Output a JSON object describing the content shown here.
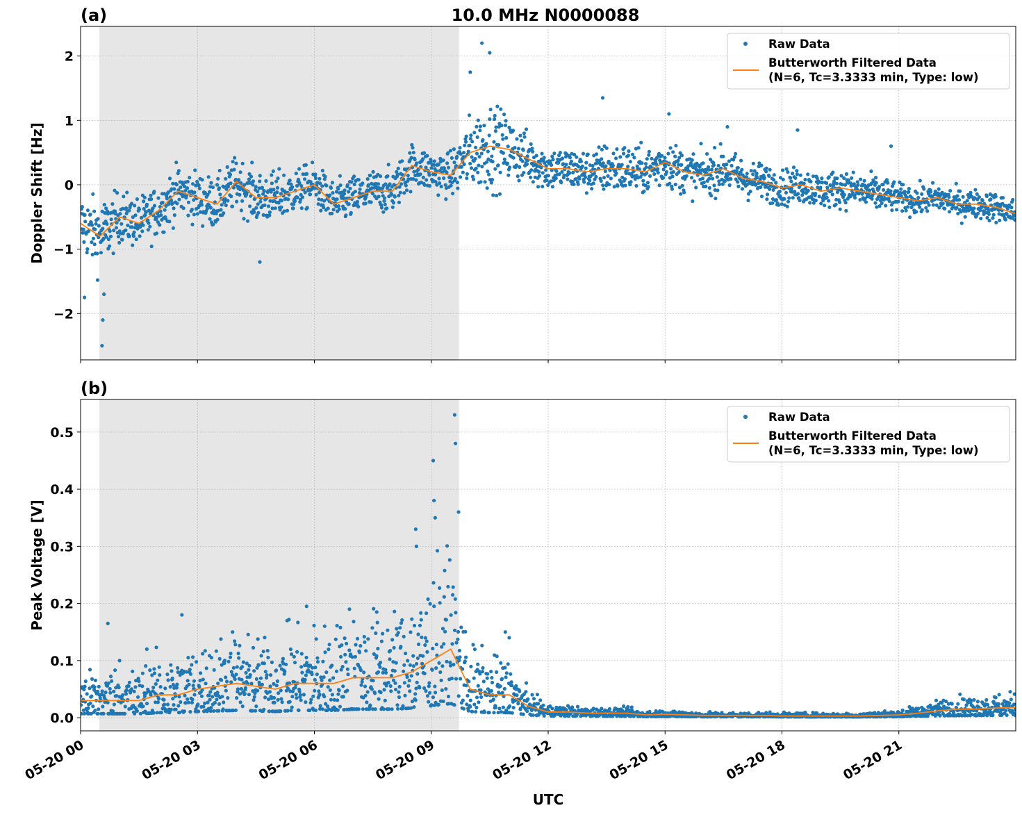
{
  "title": "10.0 MHz N0000088",
  "colors": {
    "raw": "#1f77b4",
    "filtered": "#ff7f0e",
    "shade": "#e6e6e6"
  },
  "chart_data": [
    {
      "panel_label": "(a)",
      "type": "scatter+line",
      "ylabel": "Doppler Shift [Hz]",
      "xlabel": "",
      "xlim": [
        "05-20 00:00",
        "05-21 00:00"
      ],
      "ylim": [
        -2.72,
        2.46
      ],
      "yticks": [
        -2,
        -1,
        0,
        1,
        2
      ],
      "ytick_labels": [
        "−2",
        "−1",
        "0",
        "1",
        "2"
      ],
      "grid": true,
      "shaded_interval_hours": [
        0.48,
        9.71
      ],
      "legend": {
        "position": "top-right",
        "entries": [
          "Raw Data",
          "Butterworth Filtered Data",
          "(N=6, Tc=3.3333 min, Type: low)"
        ]
      },
      "x_hours": [
        0,
        0.5,
        1,
        1.5,
        2,
        2.5,
        3,
        3.5,
        4,
        4.5,
        5,
        5.5,
        6,
        6.5,
        7,
        7.5,
        8,
        8.5,
        9,
        9.5,
        10,
        10.5,
        11,
        11.5,
        12,
        12.5,
        13,
        13.5,
        14,
        14.5,
        15,
        15.5,
        16,
        16.5,
        17,
        17.5,
        18,
        18.5,
        19,
        19.5,
        20,
        20.5,
        21,
        21.5,
        22,
        22.5,
        23,
        23.5,
        24
      ],
      "filtered": [
        -0.6,
        -0.8,
        -0.5,
        -0.6,
        -0.4,
        -0.1,
        -0.2,
        -0.3,
        0.05,
        -0.2,
        -0.2,
        -0.1,
        0.0,
        -0.3,
        -0.2,
        -0.1,
        -0.1,
        0.3,
        0.2,
        0.15,
        0.5,
        0.6,
        0.55,
        0.4,
        0.25,
        0.25,
        0.2,
        0.25,
        0.25,
        0.2,
        0.35,
        0.2,
        0.15,
        0.25,
        0.1,
        0.05,
        -0.05,
        0.0,
        -0.1,
        -0.05,
        -0.1,
        -0.15,
        -0.2,
        -0.25,
        -0.2,
        -0.3,
        -0.3,
        -0.35,
        -0.45
      ],
      "raw_spread": [
        0.4,
        0.5,
        0.35,
        0.35,
        0.35,
        0.35,
        0.35,
        0.35,
        0.35,
        0.35,
        0.35,
        0.3,
        0.3,
        0.3,
        0.3,
        0.3,
        0.3,
        0.3,
        0.3,
        0.3,
        0.5,
        0.6,
        0.45,
        0.35,
        0.3,
        0.3,
        0.3,
        0.35,
        0.35,
        0.3,
        0.35,
        0.3,
        0.3,
        0.3,
        0.28,
        0.25,
        0.25,
        0.25,
        0.25,
        0.25,
        0.25,
        0.25,
        0.2,
        0.2,
        0.2,
        0.2,
        0.2,
        0.2,
        0.2
      ],
      "raw_outliers": [
        [
          0.55,
          -2.5
        ],
        [
          0.57,
          -2.1
        ],
        [
          0.6,
          -1.7
        ],
        [
          0.1,
          -1.75
        ],
        [
          4.6,
          -1.2
        ],
        [
          10.3,
          2.2
        ],
        [
          10.5,
          2.05
        ],
        [
          10.0,
          1.75
        ],
        [
          13.4,
          1.35
        ],
        [
          15.1,
          1.1
        ],
        [
          16.6,
          0.9
        ],
        [
          18.4,
          0.85
        ],
        [
          20.8,
          0.6
        ]
      ]
    },
    {
      "panel_label": "(b)",
      "type": "scatter+line",
      "ylabel": "Peak Voltage [V]",
      "xlabel": "UTC",
      "xlim": [
        "05-20 00:00",
        "05-21 00:00"
      ],
      "ylim": [
        -0.023,
        0.557
      ],
      "yticks": [
        0.0,
        0.1,
        0.2,
        0.3,
        0.4,
        0.5
      ],
      "ytick_labels": [
        "0.0",
        "0.1",
        "0.2",
        "0.3",
        "0.4",
        "0.5"
      ],
      "xtick_hours": [
        0,
        3,
        6,
        9,
        12,
        15,
        18,
        21
      ],
      "xtick_labels": [
        "05-20 00",
        "05-20 03",
        "05-20 06",
        "05-20 09",
        "05-20 12",
        "05-20 15",
        "05-20 18",
        "05-20 21"
      ],
      "grid": true,
      "shaded_interval_hours": [
        0.48,
        9.71
      ],
      "legend": {
        "position": "top-right",
        "entries": [
          "Raw Data",
          "Butterworth Filtered Data",
          "(N=6, Tc=3.3333 min, Type: low)"
        ]
      },
      "x_hours": [
        0,
        0.5,
        1,
        1.5,
        2,
        2.5,
        3,
        3.5,
        4,
        4.5,
        5,
        5.5,
        6,
        6.5,
        7,
        7.5,
        8,
        8.5,
        9,
        9.5,
        10,
        10.5,
        11,
        11.5,
        12,
        12.5,
        13,
        13.5,
        14,
        14.5,
        15,
        15.5,
        16,
        16.5,
        17,
        17.5,
        18,
        18.5,
        19,
        19.5,
        20,
        20.5,
        21,
        21.5,
        22,
        22.5,
        23,
        23.5,
        24
      ],
      "filtered": [
        0.03,
        0.03,
        0.03,
        0.03,
        0.04,
        0.04,
        0.05,
        0.055,
        0.06,
        0.055,
        0.05,
        0.06,
        0.06,
        0.06,
        0.07,
        0.07,
        0.07,
        0.08,
        0.1,
        0.12,
        0.05,
        0.04,
        0.04,
        0.02,
        0.01,
        0.01,
        0.008,
        0.008,
        0.008,
        0.005,
        0.006,
        0.005,
        0.004,
        0.004,
        0.004,
        0.004,
        0.003,
        0.003,
        0.003,
        0.003,
        0.003,
        0.004,
        0.005,
        0.008,
        0.012,
        0.015,
        0.015,
        0.017,
        0.018
      ],
      "raw_spread": [
        0.025,
        0.03,
        0.03,
        0.03,
        0.035,
        0.04,
        0.04,
        0.045,
        0.045,
        0.045,
        0.045,
        0.05,
        0.055,
        0.055,
        0.06,
        0.06,
        0.065,
        0.07,
        0.08,
        0.09,
        0.04,
        0.035,
        0.035,
        0.012,
        0.006,
        0.006,
        0.005,
        0.005,
        0.005,
        0.004,
        0.004,
        0.004,
        0.003,
        0.003,
        0.003,
        0.003,
        0.003,
        0.003,
        0.003,
        0.003,
        0.003,
        0.004,
        0.005,
        0.007,
        0.01,
        0.012,
        0.012,
        0.013,
        0.013
      ],
      "raw_outliers": [
        [
          0.7,
          0.165
        ],
        [
          1.0,
          0.1
        ],
        [
          1.7,
          0.12
        ],
        [
          2.6,
          0.18
        ],
        [
          3.9,
          0.15
        ],
        [
          5.3,
          0.17
        ],
        [
          5.8,
          0.195
        ],
        [
          6.9,
          0.19
        ],
        [
          7.6,
          0.185
        ],
        [
          8.6,
          0.33
        ],
        [
          8.62,
          0.3
        ],
        [
          9.05,
          0.45
        ],
        [
          9.07,
          0.38
        ],
        [
          9.1,
          0.35
        ],
        [
          9.6,
          0.53
        ],
        [
          9.62,
          0.48
        ],
        [
          9.7,
          0.36
        ],
        [
          10.9,
          0.15
        ],
        [
          11.0,
          0.14
        ]
      ]
    }
  ]
}
